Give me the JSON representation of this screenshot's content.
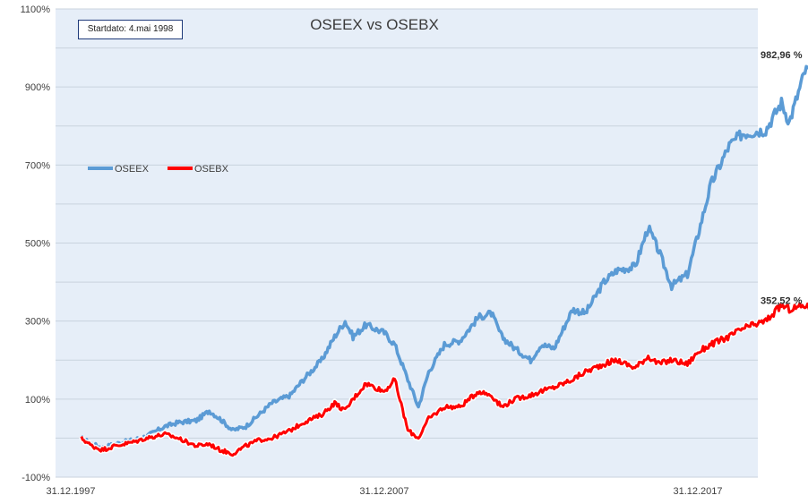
{
  "chart_data": {
    "type": "line",
    "title": "OSEEX vs OSEBX",
    "annotation": "Startdato: 4.mai 1998",
    "xlabel": "",
    "ylabel": "",
    "x_ticks": [
      "31.12.1997",
      "31.12.2007",
      "31.12.2017"
    ],
    "y_ticks": [
      "-100%",
      "100%",
      "300%",
      "500%",
      "700%",
      "900%",
      "1100%"
    ],
    "ylim": [
      -100,
      1100
    ],
    "grid": true,
    "legend_position": "left",
    "series": [
      {
        "name": "OSEEX",
        "color": "#5b9bd5",
        "end_label": "982,96 %",
        "points": [
          [
            "1998-05-04",
            0
          ],
          [
            "1998-09-01",
            -15
          ],
          [
            "1999-01-01",
            -25
          ],
          [
            "1999-06-01",
            -15
          ],
          [
            "2000-01-01",
            -5
          ],
          [
            "2000-06-01",
            5
          ],
          [
            "2001-01-01",
            30
          ],
          [
            "2001-06-01",
            40
          ],
          [
            "2002-01-01",
            45
          ],
          [
            "2002-06-01",
            70
          ],
          [
            "2002-10-01",
            50
          ],
          [
            "2003-03-01",
            20
          ],
          [
            "2003-08-01",
            30
          ],
          [
            "2004-01-01",
            60
          ],
          [
            "2004-06-01",
            90
          ],
          [
            "2005-01-01",
            110
          ],
          [
            "2005-06-01",
            150
          ],
          [
            "2006-01-01",
            200
          ],
          [
            "2006-06-01",
            260
          ],
          [
            "2006-10-01",
            300
          ],
          [
            "2007-01-01",
            260
          ],
          [
            "2007-06-01",
            290
          ],
          [
            "2007-12-31",
            270
          ],
          [
            "2008-05-01",
            240
          ],
          [
            "2008-10-01",
            150
          ],
          [
            "2009-02-01",
            80
          ],
          [
            "2009-06-01",
            170
          ],
          [
            "2009-12-01",
            240
          ],
          [
            "2010-06-01",
            250
          ],
          [
            "2011-01-01",
            310
          ],
          [
            "2011-06-01",
            320
          ],
          [
            "2011-10-01",
            260
          ],
          [
            "2012-03-01",
            230
          ],
          [
            "2012-09-01",
            200
          ],
          [
            "2013-01-01",
            240
          ],
          [
            "2013-06-01",
            230
          ],
          [
            "2014-01-01",
            330
          ],
          [
            "2014-06-01",
            320
          ],
          [
            "2015-01-01",
            400
          ],
          [
            "2015-06-01",
            430
          ],
          [
            "2016-01-01",
            440
          ],
          [
            "2016-06-01",
            540
          ],
          [
            "2016-10-01",
            480
          ],
          [
            "2017-03-01",
            390
          ],
          [
            "2017-09-01",
            420
          ],
          [
            "2018-01-01",
            520
          ],
          [
            "2018-06-01",
            650
          ],
          [
            "2019-01-01",
            750
          ],
          [
            "2019-06-01",
            780
          ],
          [
            "2020-03-01",
            790
          ],
          [
            "2020-09-01",
            860
          ],
          [
            "2020-12-01",
            810
          ],
          [
            "2021-06-01",
            940
          ],
          [
            "2021-12-01",
            960
          ],
          [
            "2022-02-01",
            983
          ]
        ]
      },
      {
        "name": "OSEBX",
        "color": "#ff0000",
        "end_label": "352,52 %",
        "points": [
          [
            "1998-05-04",
            0
          ],
          [
            "1998-09-01",
            -20
          ],
          [
            "1999-01-01",
            -30
          ],
          [
            "1999-06-01",
            -20
          ],
          [
            "2000-01-01",
            -10
          ],
          [
            "2000-06-01",
            0
          ],
          [
            "2001-01-01",
            10
          ],
          [
            "2001-06-01",
            0
          ],
          [
            "2002-01-01",
            -20
          ],
          [
            "2002-06-01",
            -15
          ],
          [
            "2002-10-01",
            -30
          ],
          [
            "2003-03-01",
            -40
          ],
          [
            "2003-08-01",
            -20
          ],
          [
            "2004-01-01",
            -5
          ],
          [
            "2004-06-01",
            0
          ],
          [
            "2005-01-01",
            20
          ],
          [
            "2005-06-01",
            40
          ],
          [
            "2006-01-01",
            60
          ],
          [
            "2006-06-01",
            90
          ],
          [
            "2006-10-01",
            70
          ],
          [
            "2007-01-01",
            100
          ],
          [
            "2007-06-01",
            140
          ],
          [
            "2007-12-31",
            120
          ],
          [
            "2008-05-01",
            150
          ],
          [
            "2008-10-01",
            20
          ],
          [
            "2009-02-01",
            0
          ],
          [
            "2009-06-01",
            50
          ],
          [
            "2009-12-01",
            80
          ],
          [
            "2010-06-01",
            80
          ],
          [
            "2011-01-01",
            120
          ],
          [
            "2011-06-01",
            110
          ],
          [
            "2011-10-01",
            80
          ],
          [
            "2012-03-01",
            100
          ],
          [
            "2012-09-01",
            110
          ],
          [
            "2013-01-01",
            120
          ],
          [
            "2013-06-01",
            130
          ],
          [
            "2014-01-01",
            150
          ],
          [
            "2014-06-01",
            170
          ],
          [
            "2015-01-01",
            190
          ],
          [
            "2015-06-01",
            200
          ],
          [
            "2016-01-01",
            180
          ],
          [
            "2016-06-01",
            210
          ],
          [
            "2016-10-01",
            190
          ],
          [
            "2017-03-01",
            200
          ],
          [
            "2017-09-01",
            190
          ],
          [
            "2018-01-01",
            220
          ],
          [
            "2018-06-01",
            240
          ],
          [
            "2019-01-01",
            260
          ],
          [
            "2019-06-01",
            280
          ],
          [
            "2020-03-01",
            300
          ],
          [
            "2020-09-01",
            340
          ],
          [
            "2020-12-01",
            330
          ],
          [
            "2021-06-01",
            340
          ],
          [
            "2021-12-01",
            320
          ],
          [
            "2022-02-01",
            353
          ]
        ]
      }
    ]
  }
}
